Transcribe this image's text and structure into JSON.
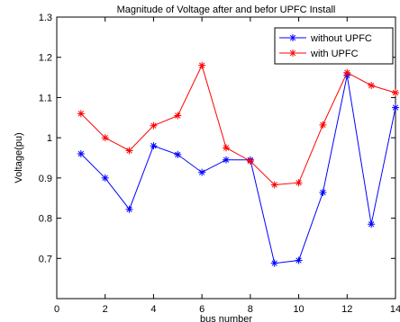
{
  "chart_data": {
    "type": "line",
    "title": "Magnitude of Voltage after and befor UPFC Install",
    "xlabel": "bus number",
    "ylabel": "Voltage(pu)",
    "xlim": [
      0,
      14
    ],
    "ylim": [
      0.6,
      1.3
    ],
    "xticks": [
      0,
      2,
      4,
      6,
      8,
      10,
      12,
      14
    ],
    "xtick_labels": [
      "0",
      "2",
      "4",
      "6",
      "8",
      "10",
      "12",
      "14"
    ],
    "yticks": [
      0.7,
      0.8,
      0.9,
      1.0,
      1.1,
      1.2,
      1.3
    ],
    "ytick_labels": [
      "0.7",
      "0.8",
      "0.9",
      "1",
      "1.1",
      "1.2",
      "1.3"
    ],
    "grid": false,
    "legend_position": "top-right",
    "marker": "asterisk",
    "x": [
      1,
      2,
      3,
      4,
      5,
      6,
      7,
      8,
      9,
      10,
      11,
      12,
      13,
      14
    ],
    "series": [
      {
        "name": "without UPFC",
        "color": "#0000ff",
        "values": [
          0.96,
          0.9,
          0.822,
          0.98,
          0.958,
          0.914,
          0.945,
          0.945,
          0.688,
          0.695,
          0.864,
          1.155,
          0.785,
          1.075
        ]
      },
      {
        "name": "with UPFC",
        "color": "#ff0000",
        "values": [
          1.06,
          1.0,
          0.968,
          1.03,
          1.055,
          1.18,
          0.975,
          0.942,
          0.883,
          0.888,
          1.032,
          1.162,
          1.13,
          1.112
        ]
      }
    ]
  }
}
